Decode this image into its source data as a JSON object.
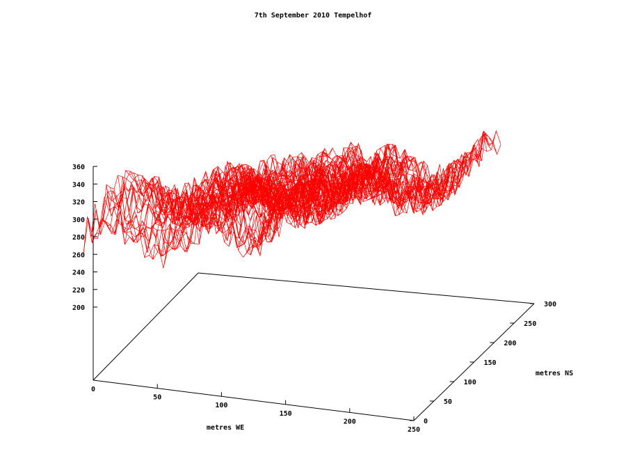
{
  "chart_data": {
    "type": "surface",
    "title": "7th September 2010 Tempelhof",
    "xlabel": "metres WE",
    "ylabel": "metres NS",
    "zlabel": "",
    "xlim": [
      0,
      250
    ],
    "ylim": [
      0,
      300
    ],
    "zlim": [
      200,
      360
    ],
    "x_ticks": [
      "0",
      "50",
      "100",
      "150",
      "200",
      "250"
    ],
    "y_ticks": [
      "0",
      "50",
      "100",
      "150",
      "200",
      "250",
      "300"
    ],
    "z_ticks": [
      "200",
      "220",
      "240",
      "260",
      "280",
      "300",
      "320",
      "340",
      "360"
    ],
    "series": [
      {
        "color": "#ff0000",
        "style": "wireframe"
      }
    ]
  }
}
